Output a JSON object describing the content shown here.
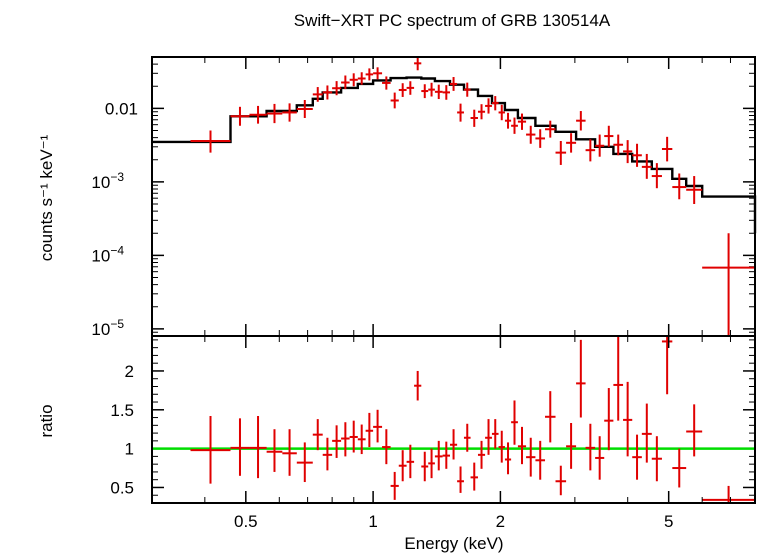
{
  "chart_data": [
    {
      "type": "scatter",
      "title": "Swift−XRT PC spectrum of GRB 130514A",
      "ylabel": "counts s⁻¹ keV⁻¹",
      "xscale": "log",
      "yscale": "log",
      "xlim": [
        0.3,
        8.0
      ],
      "ylim": [
        8e-06,
        0.05
      ],
      "yticks": [
        {
          "value": 0.01,
          "label": "0.01"
        },
        {
          "value": 0.001,
          "label": "10",
          "exp": "−3"
        },
        {
          "value": 0.0001,
          "label": "10",
          "exp": "−4"
        },
        {
          "value": 1e-05,
          "label": "10",
          "exp": "−5"
        }
      ],
      "data_color": "#e00000",
      "model_color": "#000000",
      "series": [
        {
          "name": "data",
          "x_lo": [
            0.37,
            0.46,
            0.51,
            0.56,
            0.61,
            0.66,
            0.72,
            0.76,
            0.8,
            0.84,
            0.88,
            0.92,
            0.96,
            1.0,
            1.05,
            1.1,
            1.15,
            1.2,
            1.25,
            1.3,
            1.35,
            1.4,
            1.46,
            1.52,
            1.58,
            1.64,
            1.7,
            1.77,
            1.84,
            1.91,
            1.98,
            2.05,
            2.12,
            2.2,
            2.3,
            2.42,
            2.55,
            2.7,
            2.86,
            3.02,
            3.18,
            3.35,
            3.52,
            3.7,
            3.9,
            4.1,
            4.32,
            4.56,
            4.82,
            5.1,
            5.5,
            6.0
          ],
          "x_hi": [
            0.46,
            0.51,
            0.56,
            0.61,
            0.66,
            0.72,
            0.76,
            0.8,
            0.84,
            0.88,
            0.92,
            0.96,
            1.0,
            1.05,
            1.1,
            1.15,
            1.2,
            1.25,
            1.3,
            1.35,
            1.4,
            1.46,
            1.52,
            1.58,
            1.64,
            1.7,
            1.77,
            1.84,
            1.91,
            1.98,
            2.05,
            2.12,
            2.2,
            2.3,
            2.42,
            2.55,
            2.7,
            2.86,
            3.02,
            3.18,
            3.35,
            3.52,
            3.7,
            3.9,
            4.1,
            4.32,
            4.56,
            4.82,
            5.1,
            5.5,
            6.0,
            8.0
          ],
          "y": [
            0.0036,
            0.0078,
            0.0082,
            0.0085,
            0.0088,
            0.0098,
            0.0155,
            0.0165,
            0.0188,
            0.0225,
            0.0245,
            0.0255,
            0.029,
            0.03,
            0.0222,
            0.0128,
            0.0178,
            0.019,
            0.041,
            0.0172,
            0.018,
            0.0168,
            0.0165,
            0.0215,
            0.0088,
            0.018,
            0.0074,
            0.009,
            0.0108,
            0.0118,
            0.0088,
            0.0068,
            0.0058,
            0.0066,
            0.0044,
            0.0039,
            0.0052,
            0.0025,
            0.0034,
            0.0068,
            0.0027,
            0.0031,
            0.0042,
            0.0032,
            0.0026,
            0.0023,
            0.0016,
            0.0012,
            0.0028,
            0.00085,
            0.00078,
            6.8e-05
          ],
          "y_lo": [
            0.0025,
            0.0058,
            0.0062,
            0.0063,
            0.0066,
            0.0074,
            0.0123,
            0.0132,
            0.0151,
            0.0183,
            0.02,
            0.021,
            0.024,
            0.0248,
            0.018,
            0.01,
            0.0143,
            0.0153,
            0.033,
            0.0138,
            0.0145,
            0.0134,
            0.0131,
            0.0173,
            0.0066,
            0.0144,
            0.0056,
            0.0071,
            0.0085,
            0.0094,
            0.0069,
            0.0053,
            0.0045,
            0.0051,
            0.0033,
            0.0029,
            0.004,
            0.0017,
            0.0025,
            0.005,
            0.0019,
            0.0022,
            0.003,
            0.0023,
            0.0018,
            0.0016,
            0.0011,
            0.00082,
            0.0019,
            0.00058,
            0.0005,
            6.5e-06
          ],
          "y_hi": [
            0.005,
            0.0105,
            0.0108,
            0.0115,
            0.0117,
            0.013,
            0.0195,
            0.0205,
            0.0235,
            0.028,
            0.03,
            0.031,
            0.035,
            0.0362,
            0.0272,
            0.0164,
            0.022,
            0.0234,
            0.051,
            0.0213,
            0.0223,
            0.021,
            0.0207,
            0.0267,
            0.0116,
            0.0224,
            0.0096,
            0.0114,
            0.0137,
            0.0147,
            0.0112,
            0.0087,
            0.0075,
            0.0085,
            0.0058,
            0.0052,
            0.0068,
            0.0036,
            0.0046,
            0.0092,
            0.0038,
            0.0044,
            0.0058,
            0.0044,
            0.0037,
            0.0033,
            0.0024,
            0.0018,
            0.0041,
            0.0013,
            0.0012,
            0.0002
          ]
        },
        {
          "name": "model",
          "step_x": [
            0.3,
            0.46,
            0.56,
            0.66,
            0.72,
            0.76,
            0.84,
            0.92,
            1.0,
            1.1,
            1.2,
            1.3,
            1.4,
            1.52,
            1.64,
            1.77,
            1.91,
            2.05,
            2.2,
            2.42,
            2.7,
            3.02,
            3.35,
            3.7,
            4.1,
            4.56,
            5.1,
            5.5,
            6.0,
            8.0
          ],
          "step_y": [
            0.0035,
            0.0078,
            0.0092,
            0.011,
            0.0135,
            0.0165,
            0.019,
            0.0215,
            0.024,
            0.0258,
            0.0262,
            0.0255,
            0.0235,
            0.021,
            0.018,
            0.0148,
            0.0118,
            0.0095,
            0.0074,
            0.0058,
            0.0048,
            0.0038,
            0.003,
            0.0024,
            0.0019,
            0.0015,
            0.0011,
            0.00088,
            0.00063,
            0.0002
          ]
        }
      ]
    },
    {
      "type": "scatter",
      "xlabel": "Energy (keV)",
      "ylabel": "ratio",
      "xscale": "log",
      "xlim": [
        0.3,
        8.0
      ],
      "ylim": [
        0.3,
        2.45
      ],
      "yticks": [
        0.5,
        1,
        1.5,
        2
      ],
      "ytick_labels": [
        "0.5",
        "1",
        "1.5",
        "2"
      ],
      "xticks": [
        0.5,
        1,
        2,
        5
      ],
      "xtick_labels": [
        "0.5",
        "1",
        "2",
        "5"
      ],
      "reference_line": {
        "y": 1.0,
        "color": "#00dd00"
      },
      "series": [
        {
          "name": "ratio",
          "y": [
            0.98,
            1.01,
            1.01,
            0.96,
            0.94,
            0.82,
            1.18,
            0.92,
            1.1,
            1.13,
            1.15,
            1.12,
            1.23,
            1.28,
            1.02,
            0.52,
            0.78,
            0.83,
            1.81,
            0.77,
            0.81,
            0.9,
            0.91,
            1.05,
            0.58,
            1.14,
            0.63,
            0.92,
            1.14,
            1.19,
            1.02,
            0.86,
            1.34,
            1.03,
            0.89,
            0.85,
            1.41,
            0.58,
            1.03,
            1.84,
            1.01,
            0.88,
            1.36,
            1.82,
            1.37,
            0.89,
            1.19,
            0.87,
            2.38,
            0.75,
            1.22,
            0.34
          ],
          "y_lo": [
            0.55,
            0.65,
            0.62,
            0.7,
            0.65,
            0.57,
            0.98,
            0.72,
            0.88,
            0.9,
            0.95,
            0.93,
            1.02,
            1.08,
            0.8,
            0.34,
            0.58,
            0.62,
            1.62,
            0.58,
            0.62,
            0.72,
            0.74,
            0.86,
            0.43,
            0.96,
            0.46,
            0.74,
            0.92,
            1.0,
            0.82,
            0.67,
            1.05,
            0.8,
            0.64,
            0.6,
            1.08,
            0.4,
            0.74,
            1.4,
            0.72,
            0.6,
            0.98,
            1.36,
            0.9,
            0.6,
            0.82,
            0.58,
            1.7,
            0.5,
            0.9,
            0.2
          ],
          "y_hi": [
            1.42,
            1.39,
            1.42,
            1.25,
            1.25,
            1.08,
            1.38,
            1.14,
            1.3,
            1.34,
            1.36,
            1.31,
            1.46,
            1.5,
            1.25,
            0.7,
            0.98,
            1.05,
            2.0,
            0.96,
            1.0,
            1.1,
            1.09,
            1.25,
            0.77,
            1.32,
            0.82,
            1.1,
            1.38,
            1.38,
            1.23,
            1.08,
            1.62,
            1.28,
            1.14,
            1.1,
            1.74,
            0.78,
            1.33,
            2.4,
            1.32,
            1.16,
            1.78,
            2.45,
            1.86,
            1.18,
            1.58,
            1.16,
            2.45,
            1.0,
            1.57,
            0.52
          ]
        }
      ]
    }
  ]
}
